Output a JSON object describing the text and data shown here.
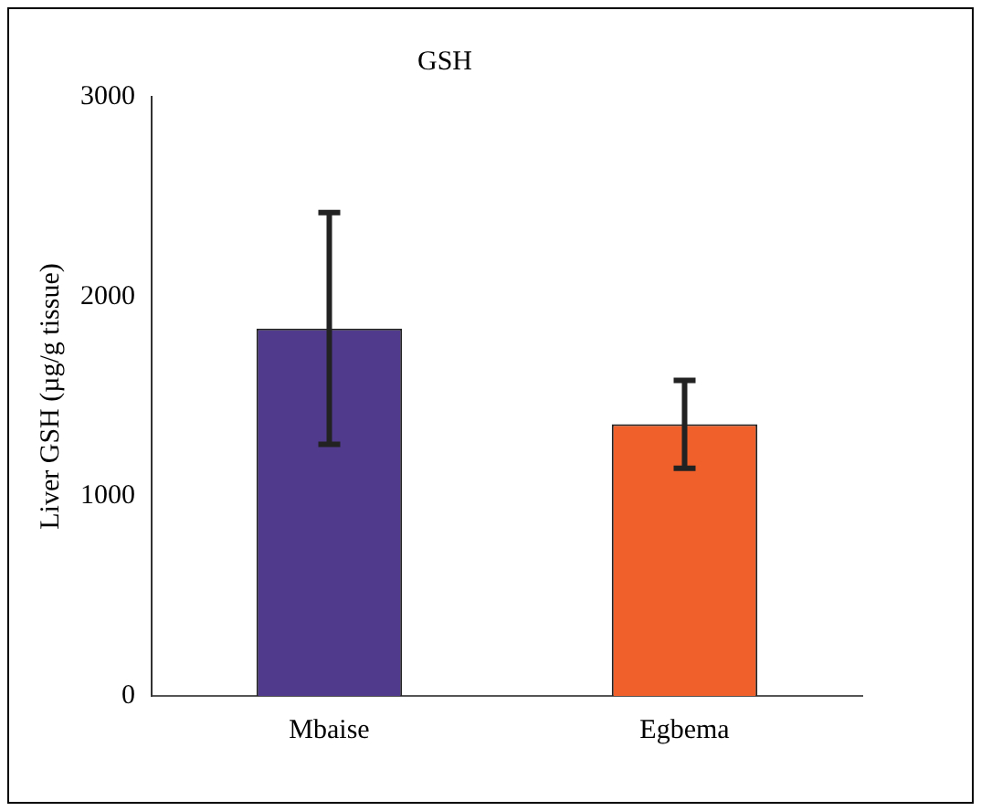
{
  "chart_data": {
    "type": "bar",
    "title": "GSH",
    "ylabel": "Liver GSH (µg/g tissue)",
    "categories": [
      "Mbaise",
      "Egbema"
    ],
    "values": [
      1840,
      1360
    ],
    "colors": [
      "#4f3a8c",
      "#f0602a"
    ],
    "errors": [
      580,
      220
    ],
    "ylim": [
      0,
      3000
    ],
    "yticks": [
      0,
      1000,
      2000,
      3000
    ],
    "grid": false,
    "legend": false
  }
}
